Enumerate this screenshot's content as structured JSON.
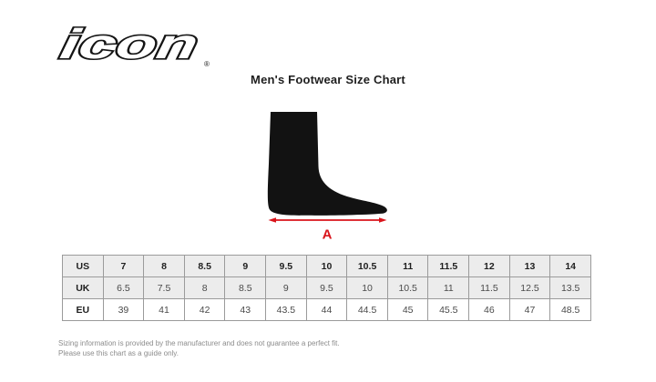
{
  "brand": {
    "logo_text": "icon",
    "registered_mark": "®"
  },
  "chart_data": {
    "type": "table",
    "title": "Men's Footwear Size Chart",
    "measure_label": "A",
    "rows": [
      {
        "label": "US",
        "values": [
          "7",
          "8",
          "8.5",
          "9",
          "9.5",
          "10",
          "10.5",
          "11",
          "11.5",
          "12",
          "13",
          "14"
        ]
      },
      {
        "label": "UK",
        "values": [
          "6.5",
          "7.5",
          "8",
          "8.5",
          "9",
          "9.5",
          "10",
          "10.5",
          "11",
          "11.5",
          "12.5",
          "13.5"
        ]
      },
      {
        "label": "EU",
        "values": [
          "39",
          "41",
          "42",
          "43",
          "43.5",
          "44",
          "44.5",
          "45",
          "45.5",
          "46",
          "47",
          "48.5"
        ]
      }
    ]
  },
  "footnote": {
    "line1": "Sizing information is provided by the manufacturer and does not guarantee a perfect fit.",
    "line2": "Please use this chart as a guide only."
  },
  "colors": {
    "accent_red": "#d9141b",
    "silhouette_black": "#121212",
    "table_border": "#9b9b9b",
    "shaded_row_bg": "#ececec"
  }
}
